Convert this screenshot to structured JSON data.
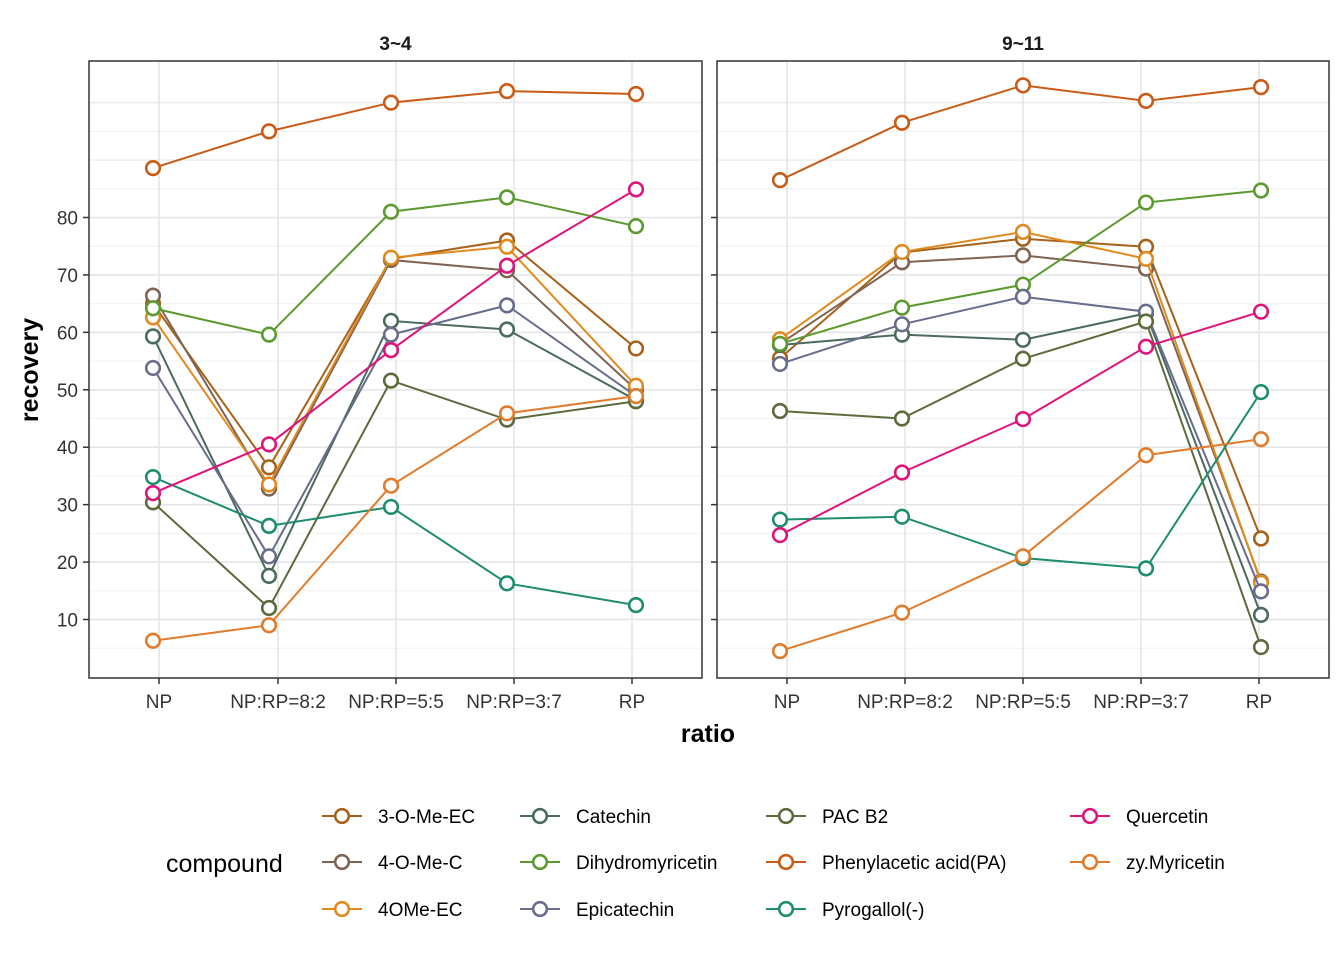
{
  "chart_data": {
    "type": "line",
    "facet_labels": [
      "3~4",
      "9~11"
    ],
    "categories": [
      "NP",
      "NP:RP=8:2",
      "NP:RP=5:5",
      "NP:RP=3:7",
      "RP"
    ],
    "xlabel": "ratio",
    "ylabel": "recovery",
    "ylim": [
      0,
      106
    ],
    "yticks": [
      10,
      20,
      30,
      40,
      50,
      60,
      70,
      80
    ],
    "grid": true,
    "legend": {
      "title": "compound",
      "position": "bottom"
    },
    "series": [
      {
        "name": "3-O-Me-EC",
        "color": "#A6611A",
        "values": [
          [
            65.0,
            36.5,
            72.8,
            76.0,
            57.2
          ],
          [
            55.5,
            73.9,
            76.3,
            74.9,
            24.1
          ]
        ]
      },
      {
        "name": "4-O-Me-C",
        "color": "#7F6454",
        "values": [
          [
            66.4,
            32.8,
            72.6,
            70.8,
            50.0
          ],
          [
            58.0,
            72.2,
            73.4,
            71.1,
            16.6
          ]
        ]
      },
      {
        "name": "4OMe-EC",
        "color": "#E08A1E",
        "values": [
          [
            62.6,
            33.5,
            73.0,
            74.9,
            50.7
          ],
          [
            58.8,
            74.0,
            77.5,
            72.8,
            16.4
          ]
        ]
      },
      {
        "name": "Catechin",
        "color": "#4A6B5E",
        "values": [
          [
            59.3,
            17.6,
            62.0,
            60.5,
            48.2
          ],
          [
            57.8,
            59.6,
            58.7,
            63.3,
            10.8
          ]
        ]
      },
      {
        "name": "Dihydromyricetin",
        "color": "#5A9A2E",
        "values": [
          [
            64.2,
            59.6,
            81.0,
            83.5,
            78.5
          ],
          [
            58.0,
            64.3,
            68.3,
            82.6,
            84.7
          ]
        ]
      },
      {
        "name": "Epicatechin",
        "color": "#676D8B",
        "values": [
          [
            53.8,
            21.0,
            59.6,
            64.7,
            48.9
          ],
          [
            54.5,
            61.4,
            66.2,
            63.6,
            14.9
          ]
        ]
      },
      {
        "name": "PAC B2",
        "color": "#5C6B3C",
        "values": [
          [
            30.4,
            12.0,
            51.6,
            44.8,
            48.0
          ],
          [
            46.3,
            45.0,
            55.4,
            61.9,
            5.2
          ]
        ]
      },
      {
        "name": "Phenylacetic acid(PA)",
        "color": "#C95B17",
        "values": [
          [
            88.6,
            95.0,
            100.0,
            102.0,
            101.5
          ],
          [
            86.5,
            96.5,
            103.0,
            100.3,
            102.7
          ]
        ]
      },
      {
        "name": "Pyrogallol(-)",
        "color": "#1E8C6E",
        "values": [
          [
            34.8,
            26.3,
            29.6,
            16.3,
            12.5
          ],
          [
            27.4,
            27.9,
            20.7,
            18.9,
            49.6
          ]
        ]
      },
      {
        "name": "Quercetin",
        "color": "#E0137A",
        "values": [
          [
            32.0,
            40.5,
            56.9,
            71.6,
            84.9
          ],
          [
            24.7,
            35.6,
            44.9,
            57.5,
            63.6
          ]
        ]
      },
      {
        "name": "zy.Myricetin",
        "color": "#E07B2B",
        "values": [
          [
            6.3,
            9.0,
            33.3,
            45.9,
            48.9
          ],
          [
            4.5,
            11.2,
            21.0,
            38.6,
            41.4
          ]
        ]
      }
    ]
  }
}
